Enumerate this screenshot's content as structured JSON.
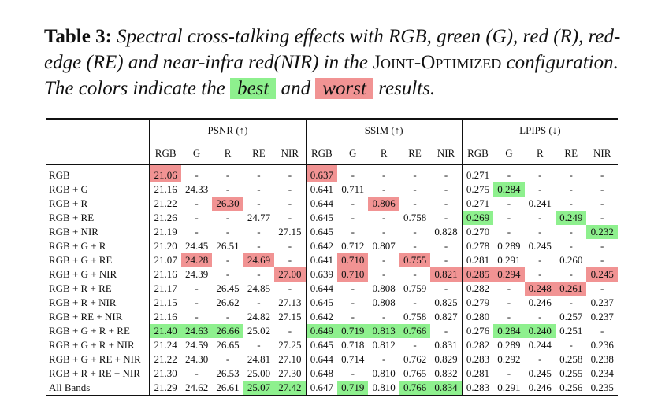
{
  "caption": {
    "label": "Table 3:",
    "text_1": "Spectral cross-talking effects with RGB, green (G), red (R), red-edge (RE) and near-infra red(NIR) in the",
    "config_name": "Joint-Optimized",
    "text_2": "configuration. The colors indicate the",
    "best_label": "best",
    "and_word": "and",
    "worst_label": "worst",
    "text_3": "results."
  },
  "colors": {
    "best": "#8ef08e",
    "worst": "#f19393"
  },
  "table": {
    "groups": [
      "PSNR (↑)",
      "SSIM (↑)",
      "LPIPS (↓)"
    ],
    "subheaders": [
      "RGB",
      "G",
      "R",
      "RE",
      "NIR"
    ],
    "rows": [
      {
        "config": "RGB",
        "cells": [
          {
            "v": "21.06",
            "h": "worst"
          },
          {
            "v": "-"
          },
          {
            "v": "-"
          },
          {
            "v": "-"
          },
          {
            "v": "-"
          },
          {
            "v": "0.637",
            "h": "worst"
          },
          {
            "v": "-"
          },
          {
            "v": "-"
          },
          {
            "v": "-"
          },
          {
            "v": "-"
          },
          {
            "v": "0.271"
          },
          {
            "v": "-"
          },
          {
            "v": "-"
          },
          {
            "v": "-"
          },
          {
            "v": "-"
          }
        ]
      },
      {
        "config": "RGB + G",
        "cells": [
          {
            "v": "21.16"
          },
          {
            "v": "24.33"
          },
          {
            "v": "-"
          },
          {
            "v": "-"
          },
          {
            "v": "-"
          },
          {
            "v": "0.641"
          },
          {
            "v": "0.711"
          },
          {
            "v": "-"
          },
          {
            "v": "-"
          },
          {
            "v": "-"
          },
          {
            "v": "0.275"
          },
          {
            "v": "0.284",
            "h": "best"
          },
          {
            "v": "-"
          },
          {
            "v": "-"
          },
          {
            "v": "-"
          }
        ]
      },
      {
        "config": "RGB + R",
        "cells": [
          {
            "v": "21.22"
          },
          {
            "v": "-"
          },
          {
            "v": "26.30",
            "h": "worst"
          },
          {
            "v": "-"
          },
          {
            "v": "-"
          },
          {
            "v": "0.644"
          },
          {
            "v": "-"
          },
          {
            "v": "0.806",
            "h": "worst"
          },
          {
            "v": "-"
          },
          {
            "v": "-"
          },
          {
            "v": "0.271"
          },
          {
            "v": "-"
          },
          {
            "v": "0.241"
          },
          {
            "v": "-"
          },
          {
            "v": "-"
          }
        ]
      },
      {
        "config": "RGB + RE",
        "cells": [
          {
            "v": "21.26"
          },
          {
            "v": "-"
          },
          {
            "v": "-"
          },
          {
            "v": "24.77"
          },
          {
            "v": "-"
          },
          {
            "v": "0.645"
          },
          {
            "v": "-"
          },
          {
            "v": "-"
          },
          {
            "v": "0.758"
          },
          {
            "v": "-"
          },
          {
            "v": "0.269",
            "h": "best"
          },
          {
            "v": "-"
          },
          {
            "v": "-"
          },
          {
            "v": "0.249",
            "h": "best"
          },
          {
            "v": "-"
          }
        ]
      },
      {
        "config": "RGB + NIR",
        "cells": [
          {
            "v": "21.19"
          },
          {
            "v": "-"
          },
          {
            "v": "-"
          },
          {
            "v": "-"
          },
          {
            "v": "27.15"
          },
          {
            "v": "0.645"
          },
          {
            "v": "-"
          },
          {
            "v": "-"
          },
          {
            "v": "-"
          },
          {
            "v": "0.828"
          },
          {
            "v": "0.270"
          },
          {
            "v": "-"
          },
          {
            "v": "-"
          },
          {
            "v": "-"
          },
          {
            "v": "0.232",
            "h": "best"
          }
        ]
      },
      {
        "config": "RGB + G + R",
        "cells": [
          {
            "v": "21.20"
          },
          {
            "v": "24.45"
          },
          {
            "v": "26.51"
          },
          {
            "v": "-"
          },
          {
            "v": "-"
          },
          {
            "v": "0.642"
          },
          {
            "v": "0.712"
          },
          {
            "v": "0.807"
          },
          {
            "v": "-"
          },
          {
            "v": "-"
          },
          {
            "v": "0.278"
          },
          {
            "v": "0.289"
          },
          {
            "v": "0.245"
          },
          {
            "v": "-"
          },
          {
            "v": "-"
          }
        ]
      },
      {
        "config": "RGB + G + RE",
        "cells": [
          {
            "v": "21.07"
          },
          {
            "v": "24.28",
            "h": "worst"
          },
          {
            "v": "-"
          },
          {
            "v": "24.69",
            "h": "worst"
          },
          {
            "v": "-"
          },
          {
            "v": "0.641"
          },
          {
            "v": "0.710",
            "h": "worst"
          },
          {
            "v": "-"
          },
          {
            "v": "0.755",
            "h": "worst"
          },
          {
            "v": "-"
          },
          {
            "v": "0.281"
          },
          {
            "v": "0.291"
          },
          {
            "v": "-"
          },
          {
            "v": "0.260"
          },
          {
            "v": "-"
          }
        ]
      },
      {
        "config": "RGB + G + NIR",
        "cells": [
          {
            "v": "21.16"
          },
          {
            "v": "24.39"
          },
          {
            "v": "-"
          },
          {
            "v": "-"
          },
          {
            "v": "27.00",
            "h": "worst"
          },
          {
            "v": "0.639"
          },
          {
            "v": "0.710",
            "h": "worst"
          },
          {
            "v": "-"
          },
          {
            "v": "-"
          },
          {
            "v": "0.821",
            "h": "worst"
          },
          {
            "v": "0.285",
            "h": "worst"
          },
          {
            "v": "0.294",
            "h": "worst"
          },
          {
            "v": "-"
          },
          {
            "v": "-"
          },
          {
            "v": "0.245",
            "h": "worst"
          }
        ]
      },
      {
        "config": "RGB + R + RE",
        "cells": [
          {
            "v": "21.17"
          },
          {
            "v": "-"
          },
          {
            "v": "26.45"
          },
          {
            "v": "24.85"
          },
          {
            "v": "-"
          },
          {
            "v": "0.644"
          },
          {
            "v": "-"
          },
          {
            "v": "0.808"
          },
          {
            "v": "0.759"
          },
          {
            "v": "-"
          },
          {
            "v": "0.282"
          },
          {
            "v": "-"
          },
          {
            "v": "0.248",
            "h": "worst"
          },
          {
            "v": "0.261",
            "h": "worst"
          },
          {
            "v": "-"
          }
        ]
      },
      {
        "config": "RGB + R + NIR",
        "cells": [
          {
            "v": "21.15"
          },
          {
            "v": "-"
          },
          {
            "v": "26.62"
          },
          {
            "v": "-"
          },
          {
            "v": "27.13"
          },
          {
            "v": "0.645"
          },
          {
            "v": "-"
          },
          {
            "v": "0.808"
          },
          {
            "v": "-"
          },
          {
            "v": "0.825"
          },
          {
            "v": "0.279"
          },
          {
            "v": "-"
          },
          {
            "v": "0.246"
          },
          {
            "v": "-"
          },
          {
            "v": "0.237"
          }
        ]
      },
      {
        "config": "RGB + RE + NIR",
        "cells": [
          {
            "v": "21.16"
          },
          {
            "v": "-"
          },
          {
            "v": "-"
          },
          {
            "v": "24.82"
          },
          {
            "v": "27.15"
          },
          {
            "v": "0.642"
          },
          {
            "v": "-"
          },
          {
            "v": "-"
          },
          {
            "v": "0.758"
          },
          {
            "v": "0.827"
          },
          {
            "v": "0.280"
          },
          {
            "v": "-"
          },
          {
            "v": "-"
          },
          {
            "v": "0.257"
          },
          {
            "v": "0.237"
          }
        ]
      },
      {
        "config": "RGB + G + R + RE",
        "cells": [
          {
            "v": "21.40",
            "h": "best"
          },
          {
            "v": "24.63",
            "h": "best"
          },
          {
            "v": "26.66",
            "h": "best"
          },
          {
            "v": "25.02"
          },
          {
            "v": "-"
          },
          {
            "v": "0.649",
            "h": "best"
          },
          {
            "v": "0.719",
            "h": "best"
          },
          {
            "v": "0.813",
            "h": "best"
          },
          {
            "v": "0.766",
            "h": "best"
          },
          {
            "v": "-"
          },
          {
            "v": "0.276"
          },
          {
            "v": "0.284",
            "h": "best"
          },
          {
            "v": "0.240",
            "h": "best"
          },
          {
            "v": "0.251"
          },
          {
            "v": "-"
          }
        ]
      },
      {
        "config": "RGB + G + R + NIR",
        "cells": [
          {
            "v": "21.24"
          },
          {
            "v": "24.59"
          },
          {
            "v": "26.65"
          },
          {
            "v": "-"
          },
          {
            "v": "27.25"
          },
          {
            "v": "0.645"
          },
          {
            "v": "0.718"
          },
          {
            "v": "0.812"
          },
          {
            "v": "-"
          },
          {
            "v": "0.831"
          },
          {
            "v": "0.282"
          },
          {
            "v": "0.289"
          },
          {
            "v": "0.244"
          },
          {
            "v": "-"
          },
          {
            "v": "0.236"
          }
        ]
      },
      {
        "config": "RGB + G + RE + NIR",
        "cells": [
          {
            "v": "21.22"
          },
          {
            "v": "24.30"
          },
          {
            "v": "-"
          },
          {
            "v": "24.81"
          },
          {
            "v": "27.10"
          },
          {
            "v": "0.644"
          },
          {
            "v": "0.714"
          },
          {
            "v": "-"
          },
          {
            "v": "0.762"
          },
          {
            "v": "0.829"
          },
          {
            "v": "0.283"
          },
          {
            "v": "0.292"
          },
          {
            "v": "-"
          },
          {
            "v": "0.258"
          },
          {
            "v": "0.238"
          }
        ]
      },
      {
        "config": "RGB + R + RE + NIR",
        "cells": [
          {
            "v": "21.30"
          },
          {
            "v": "-"
          },
          {
            "v": "26.53"
          },
          {
            "v": "25.00"
          },
          {
            "v": "27.30"
          },
          {
            "v": "0.648"
          },
          {
            "v": "-"
          },
          {
            "v": "0.810"
          },
          {
            "v": "0.765"
          },
          {
            "v": "0.832"
          },
          {
            "v": "0.281"
          },
          {
            "v": "-"
          },
          {
            "v": "0.245"
          },
          {
            "v": "0.255"
          },
          {
            "v": "0.234"
          }
        ]
      },
      {
        "config": "All Bands",
        "cells": [
          {
            "v": "21.29"
          },
          {
            "v": "24.62"
          },
          {
            "v": "26.61"
          },
          {
            "v": "25.07",
            "h": "best"
          },
          {
            "v": "27.42",
            "h": "best"
          },
          {
            "v": "0.647"
          },
          {
            "v": "0.719",
            "h": "best"
          },
          {
            "v": "0.810"
          },
          {
            "v": "0.766",
            "h": "best"
          },
          {
            "v": "0.834",
            "h": "best"
          },
          {
            "v": "0.283"
          },
          {
            "v": "0.291"
          },
          {
            "v": "0.246"
          },
          {
            "v": "0.256"
          },
          {
            "v": "0.235"
          }
        ]
      }
    ]
  }
}
